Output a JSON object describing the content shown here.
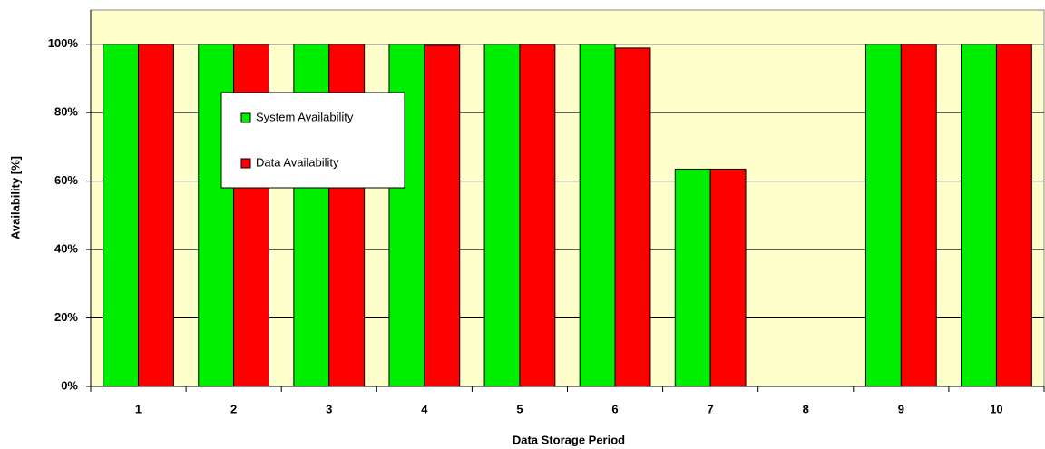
{
  "chart_data": {
    "type": "bar",
    "x_label": "Data Storage Period",
    "y_label": "Availability  [%]",
    "categories": [
      "1",
      "2",
      "3",
      "4",
      "5",
      "6",
      "7",
      "8",
      "9",
      "10"
    ],
    "series": [
      {
        "name": "System Availability",
        "color": "#00ee00",
        "values": [
          100,
          100,
          100,
          100,
          100,
          100,
          63.5,
          null,
          100,
          100
        ]
      },
      {
        "name": "Data Availability",
        "color": "#ff0000",
        "values": [
          100,
          100,
          100,
          99.7,
          100,
          98.9,
          63.5,
          null,
          100,
          100
        ]
      }
    ],
    "ylim": [
      0,
      110
    ],
    "yticks": [
      {
        "value": 0,
        "label": "0%"
      },
      {
        "value": 20,
        "label": "20%"
      },
      {
        "value": 40,
        "label": "40%"
      },
      {
        "value": 60,
        "label": "60%"
      },
      {
        "value": 80,
        "label": "80%"
      },
      {
        "value": 100,
        "label": "100%"
      }
    ],
    "grid": true,
    "plot_background": "#ffffcc"
  }
}
